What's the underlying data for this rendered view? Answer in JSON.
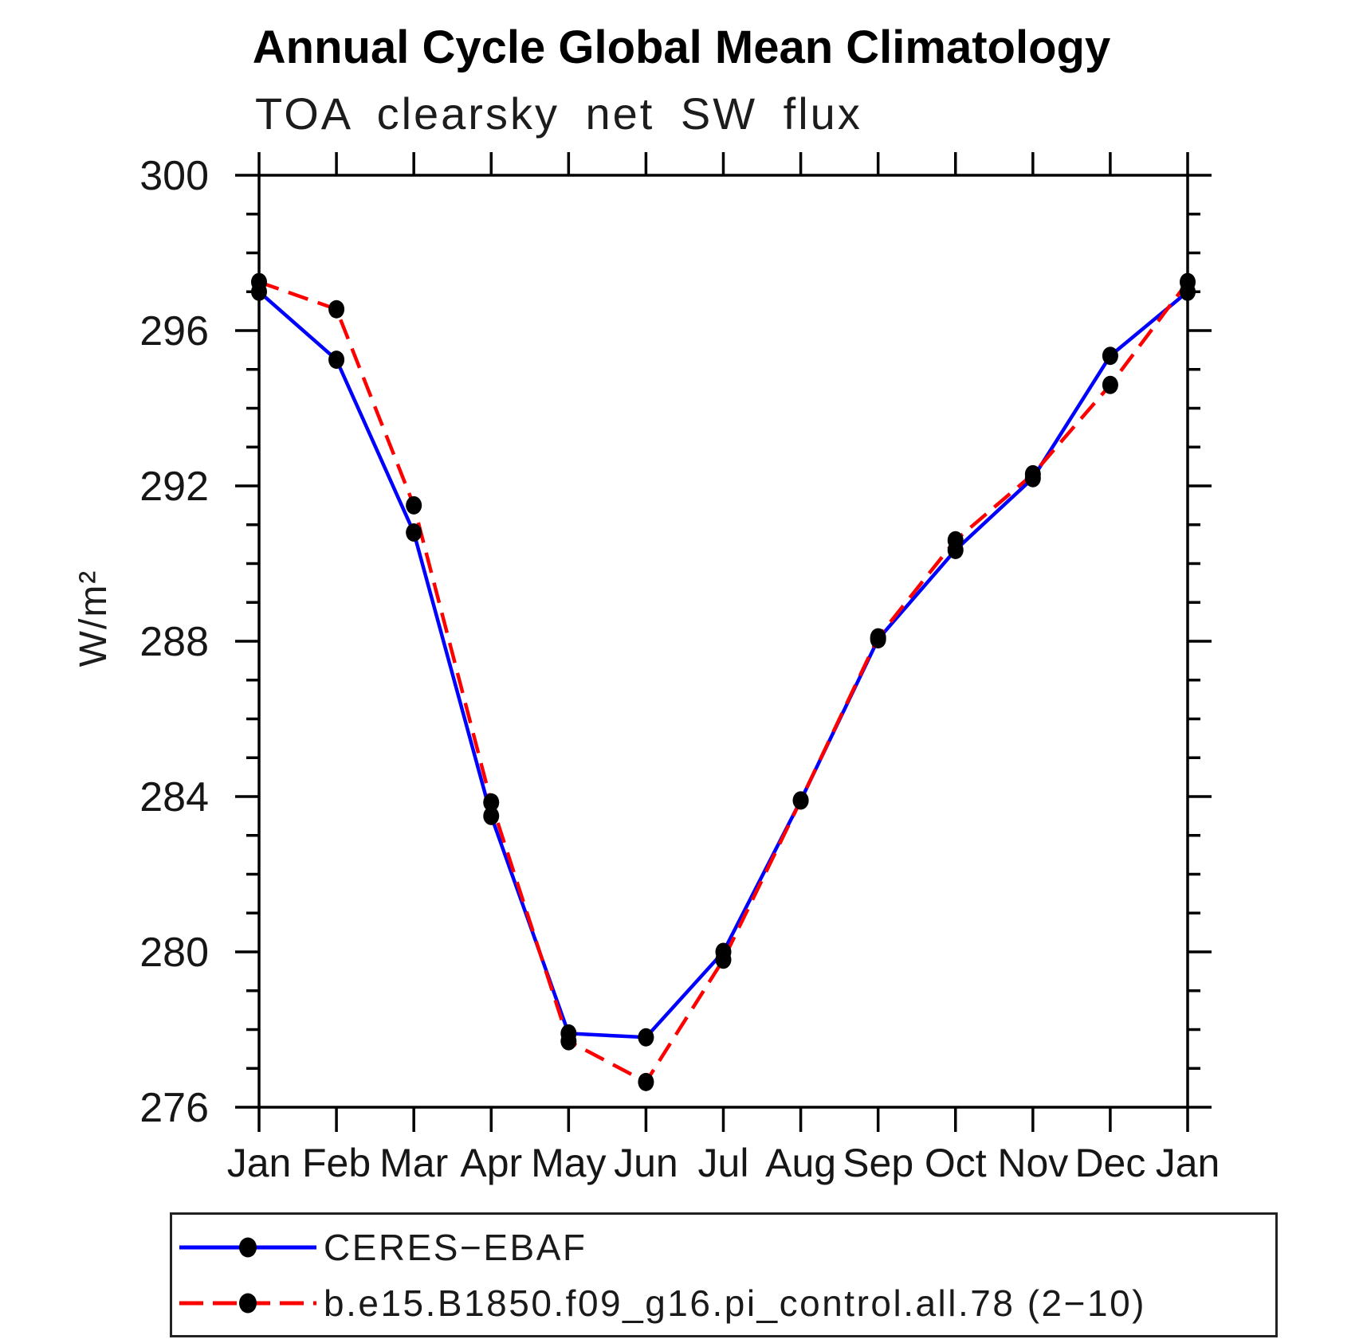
{
  "title": "Annual Cycle Global Mean Climatology",
  "subtitle": "TOA clearsky net SW flux",
  "y_axis": {
    "label": "W/m²",
    "min": 276,
    "max": 300,
    "minor_tick_step": 1,
    "major_tick_step": 4,
    "major_tick_labels": [
      "276",
      "280",
      "284",
      "288",
      "292",
      "296",
      "300"
    ]
  },
  "x_axis": {
    "categories": [
      "Jan",
      "Feb",
      "Mar",
      "Apr",
      "May",
      "Jun",
      "Jul",
      "Aug",
      "Sep",
      "Oct",
      "Nov",
      "Dec",
      "Jan"
    ]
  },
  "legend": {
    "items": [
      {
        "label": "CERES−EBAF"
      },
      {
        "label": "b.e15.B1850.f09_g16.pi_control.all.78 (2−10)"
      }
    ]
  },
  "chart_data": {
    "type": "line",
    "title": "Annual Cycle Global Mean Climatology",
    "subtitle": "TOA clearsky net SW flux",
    "ylabel": "W/m²",
    "ylim": [
      276,
      300
    ],
    "grid": false,
    "legend_position": "bottom",
    "marker_color": "#000000",
    "categories": [
      "Jan",
      "Feb",
      "Mar",
      "Apr",
      "May",
      "Jun",
      "Jul",
      "Aug",
      "Sep",
      "Oct",
      "Nov",
      "Dec",
      "Jan"
    ],
    "series": [
      {
        "name": "CERES−EBAF",
        "color": "#0000ff",
        "style": "solid",
        "values": [
          297.0,
          295.25,
          290.8,
          283.5,
          277.9,
          277.8,
          280.0,
          283.9,
          288.05,
          290.35,
          292.2,
          295.35,
          297.0
        ]
      },
      {
        "name": "b.e15.B1850.f09_g16.pi_control.all.78 (2−10)",
        "color": "#ff0000",
        "style": "dashed",
        "values": [
          297.25,
          296.55,
          291.5,
          283.85,
          277.7,
          276.65,
          279.8,
          283.9,
          288.1,
          290.6,
          292.3,
          294.6,
          297.25
        ]
      }
    ]
  }
}
